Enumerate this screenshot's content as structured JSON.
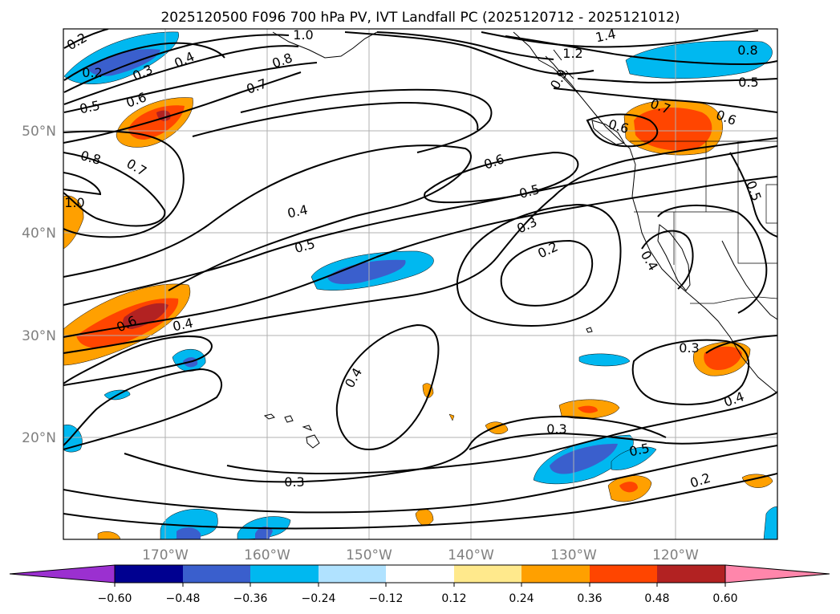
{
  "title": "2025120500 F096 700 hPa PV, IVT Landfall PC (2025120712 - 2025121012)",
  "map": {
    "lon_range": [
      -180,
      -110
    ],
    "lat_range": [
      10,
      60
    ],
    "lon_ticks": [
      {
        "value": -170,
        "label": "170°W"
      },
      {
        "value": -160,
        "label": "160°W"
      },
      {
        "value": -150,
        "label": "150°W"
      },
      {
        "value": -140,
        "label": "140°W"
      },
      {
        "value": -130,
        "label": "130°W"
      },
      {
        "value": -120,
        "label": "120°W"
      }
    ],
    "lat_ticks": [
      {
        "value": 20,
        "label": "20°N"
      },
      {
        "value": 30,
        "label": "30°N"
      },
      {
        "value": 40,
        "label": "40°N"
      },
      {
        "value": 50,
        "label": "50°N"
      }
    ],
    "gridlines": true,
    "tick_color": "#808080"
  },
  "contour_labels": [
    "0.2",
    "0.2",
    "0.3",
    "0.4",
    "0.5",
    "0.6",
    "1.0",
    "0.8",
    "0.7",
    "1.4",
    "1.2",
    "0.9",
    "0.8",
    "0.5",
    "0.7",
    "0.6",
    "0.6",
    "0.8",
    "0.7",
    "1.0",
    "0.6",
    "0.5",
    "0.4",
    "0.5",
    "0.3",
    "0.2",
    "0.6",
    "0.4",
    "0.4",
    "0.3",
    "0.3",
    "0.5",
    "0.4",
    "0.3",
    "0.2",
    "0.4",
    "0.5"
  ],
  "colorbar": {
    "extend": "both",
    "ticks": [
      "−0.60",
      "−0.48",
      "−0.36",
      "−0.24",
      "−0.12",
      "0.12",
      "0.24",
      "0.36",
      "0.48",
      "0.60"
    ],
    "colors": [
      "#9b30d0",
      "#000090",
      "#3a5fcd",
      "#00b8f0",
      "#b0e2ff",
      "#ffffff",
      "#ffe98c",
      "#ffa000",
      "#ff4500",
      "#b22222",
      "#ff86ab"
    ]
  }
}
